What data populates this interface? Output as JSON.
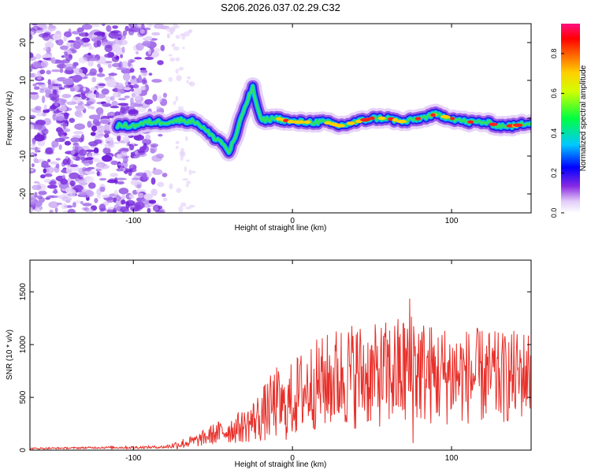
{
  "title": "S206.2026.037.02.29.C32",
  "chart_data": [
    {
      "type": "heatmap",
      "name": "spectrogram",
      "xlabel": "Height of straight line (km)",
      "ylabel": "Frequency (Hz)",
      "xlim": [
        -165,
        150
      ],
      "ylim": [
        -25,
        25
      ],
      "xticks": [
        -100,
        0,
        100
      ],
      "xtick_labels": [
        "-100",
        "0",
        "100"
      ],
      "yticks": [
        -20,
        -10,
        0,
        10,
        20
      ],
      "ytick_labels": [
        "-20",
        "-10",
        "0",
        "10",
        "20"
      ],
      "colorbar": {
        "label": "Normalized spectral amplitude",
        "range": [
          0,
          0.95
        ],
        "ticks": [
          0.0,
          0.2,
          0.4,
          0.6,
          0.8
        ],
        "tick_labels": [
          "0.0",
          "0.2",
          "0.4",
          "0.6",
          "0.8"
        ]
      },
      "ridge": {
        "x": [
          -110,
          -100,
          -90,
          -80,
          -70,
          -60,
          -50,
          -45,
          -40,
          -35,
          -30,
          -25,
          -20,
          -10,
          0,
          10,
          20,
          30,
          40,
          50,
          60,
          70,
          80,
          90,
          100,
          110,
          120,
          130,
          140,
          150
        ],
        "frequency": [
          -2,
          -2,
          -1,
          -1,
          -0.5,
          -1,
          -5,
          -6,
          -9,
          -4,
          3,
          8,
          -0.5,
          0,
          -1,
          -1,
          -1,
          -2,
          -1,
          0,
          0,
          -1,
          0,
          1,
          0,
          -1,
          -1,
          -2,
          -2,
          -1
        ]
      },
      "noise_region_x": [
        -165,
        -80
      ]
    },
    {
      "type": "line",
      "name": "snr",
      "xlabel": "Height of straight line (km)",
      "ylabel": "SNR (10 * v/v)",
      "xlim": [
        -165,
        150
      ],
      "ylim": [
        0,
        1800
      ],
      "xticks": [
        -100,
        0,
        100
      ],
      "xtick_labels": [
        "-100",
        "0",
        "100"
      ],
      "yticks": [
        0,
        500,
        1000,
        1500
      ],
      "ytick_labels": [
        "0",
        "500",
        "1000",
        "1500"
      ],
      "series": [
        {
          "name": "SNR",
          "color": "#e8302a",
          "x": [
            -165,
            -140,
            -120,
            -100,
            -80,
            -70,
            -60,
            -50,
            -40,
            -30,
            -20,
            -10,
            -5,
            0,
            10,
            20,
            30,
            40,
            50,
            60,
            70,
            75,
            80,
            90,
            100,
            110,
            120,
            130,
            140,
            150
          ],
          "level": [
            15,
            20,
            25,
            25,
            30,
            60,
            90,
            150,
            190,
            230,
            320,
            450,
            380,
            480,
            600,
            640,
            700,
            720,
            700,
            720,
            740,
            800,
            760,
            700,
            720,
            700,
            700,
            680,
            700,
            740
          ],
          "spread": [
            8,
            8,
            10,
            12,
            14,
            50,
            60,
            100,
            130,
            160,
            250,
            350,
            300,
            380,
            420,
            450,
            500,
            520,
            480,
            520,
            560,
            800,
            520,
            480,
            480,
            460,
            460,
            440,
            440,
            420
          ]
        }
      ]
    }
  ]
}
